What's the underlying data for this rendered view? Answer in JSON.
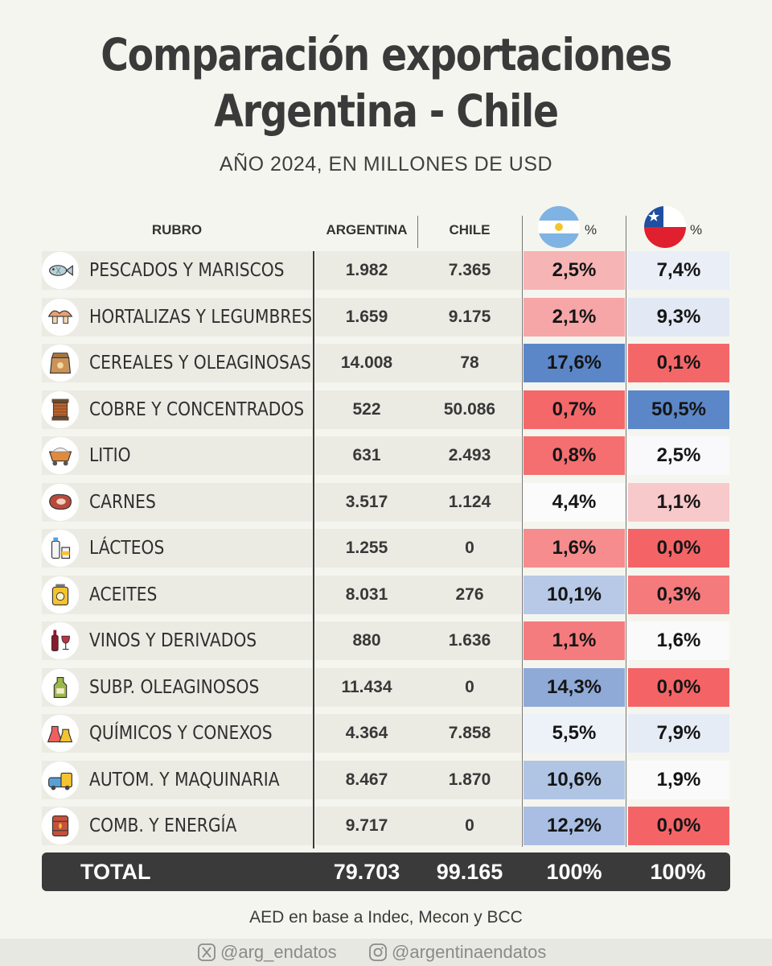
{
  "title_line1": "Comparación exportaciones",
  "title_line2": "Argentina - Chile",
  "subtitle": "AÑO 2024, EN MILLONES DE USD",
  "headers": {
    "rubro": "RUBRO",
    "argentina": "ARGENTINA",
    "chile": "CHILE",
    "pct": "%"
  },
  "chart_data": {
    "type": "table",
    "columns": [
      "RUBRO",
      "ARGENTINA",
      "CHILE",
      "%",
      "%"
    ],
    "rows": [
      {
        "rubro": "PESCADOS Y MARISCOS",
        "icon": "fish-icon",
        "argentina": "1.982",
        "chile": "7.365",
        "pct_ar": "2,5%",
        "pct_cl": "7,4%",
        "color_ar": "#f7b4b4",
        "color_cl": "#e9eef7"
      },
      {
        "rubro": "HORTALIZAS Y LEGUMBRES",
        "icon": "mushroom-icon",
        "argentina": "1.659",
        "chile": "9.175",
        "pct_ar": "2,1%",
        "pct_cl": "9,3%",
        "color_ar": "#f6a6a7",
        "color_cl": "#e2e8f4"
      },
      {
        "rubro": "CEREALES Y OLEAGINOSAS",
        "icon": "grain-sack-icon",
        "argentina": "14.008",
        "chile": "78",
        "pct_ar": "17,6%",
        "pct_cl": "0,1%",
        "color_ar": "#5b87c8",
        "color_cl": "#f46769"
      },
      {
        "rubro": "COBRE Y CONCENTRADOS",
        "icon": "copper-spool-icon",
        "argentina": "522",
        "chile": "50.086",
        "pct_ar": "0,7%",
        "pct_cl": "50,5%",
        "color_ar": "#f4686a",
        "color_cl": "#5b87c8"
      },
      {
        "rubro": "LITIO",
        "icon": "mine-cart-icon",
        "argentina": "631",
        "chile": "2.493",
        "pct_ar": "0,8%",
        "pct_cl": "2,5%",
        "color_ar": "#f56e70",
        "color_cl": "#f9f9fb"
      },
      {
        "rubro": "CARNES",
        "icon": "steak-icon",
        "argentina": "3.517",
        "chile": "1.124",
        "pct_ar": "4,4%",
        "pct_cl": "1,1%",
        "color_ar": "#fbfbfb",
        "color_cl": "#f8c9ca"
      },
      {
        "rubro": "LÁCTEOS",
        "icon": "milk-bottle-icon",
        "argentina": "1.255",
        "chile": "0",
        "pct_ar": "1,6%",
        "pct_cl": "0,0%",
        "color_ar": "#f68c8d",
        "color_cl": "#f46466"
      },
      {
        "rubro": "ACEITES",
        "icon": "oil-can-icon",
        "argentina": "8.031",
        "chile": "276",
        "pct_ar": "10,1%",
        "pct_cl": "0,3%",
        "color_ar": "#b7c9e6",
        "color_cl": "#f57a7c"
      },
      {
        "rubro": "VINOS Y DERIVADOS",
        "icon": "wine-icon",
        "argentina": "880",
        "chile": "1.636",
        "pct_ar": "1,1%",
        "pct_cl": "1,6%",
        "color_ar": "#f57c7e",
        "color_cl": "#fafafa"
      },
      {
        "rubro": "SUBP. OLEAGINOSOS",
        "icon": "oil-bottle-icon",
        "argentina": "11.434",
        "chile": "0",
        "pct_ar": "14,3%",
        "pct_cl": "0,0%",
        "color_ar": "#8faad7",
        "color_cl": "#f46466"
      },
      {
        "rubro": "QUÍMICOS Y CONEXOS",
        "icon": "flask-icon",
        "argentina": "4.364",
        "chile": "7.858",
        "pct_ar": "5,5%",
        "pct_cl": "7,9%",
        "color_ar": "#edf1f8",
        "color_cl": "#e6ecf6"
      },
      {
        "rubro": "AUTOM. Y MAQUINARIA",
        "icon": "vehicles-icon",
        "argentina": "8.467",
        "chile": "1.870",
        "pct_ar": "10,6%",
        "pct_cl": "1,9%",
        "color_ar": "#b0c4e4",
        "color_cl": "#fafafa"
      },
      {
        "rubro": "COMB. Y ENERGÍA",
        "icon": "fuel-barrel-icon",
        "argentina": "9.717",
        "chile": "0",
        "pct_ar": "12,2%",
        "pct_cl": "0,0%",
        "color_ar": "#a9bee2",
        "color_cl": "#f46466"
      }
    ],
    "total": {
      "label": "TOTAL",
      "argentina": "79.703",
      "chile": "99.165",
      "pct_ar": "100%",
      "pct_cl": "100%"
    }
  },
  "source": "AED en base a Indec, Mecon y BCC",
  "footer": {
    "x_handle": "@arg_endatos",
    "instagram_handle": "@argentinaendatos"
  },
  "flags": {
    "argentina": "argentina-flag-icon",
    "chile": "chile-flag-icon"
  }
}
